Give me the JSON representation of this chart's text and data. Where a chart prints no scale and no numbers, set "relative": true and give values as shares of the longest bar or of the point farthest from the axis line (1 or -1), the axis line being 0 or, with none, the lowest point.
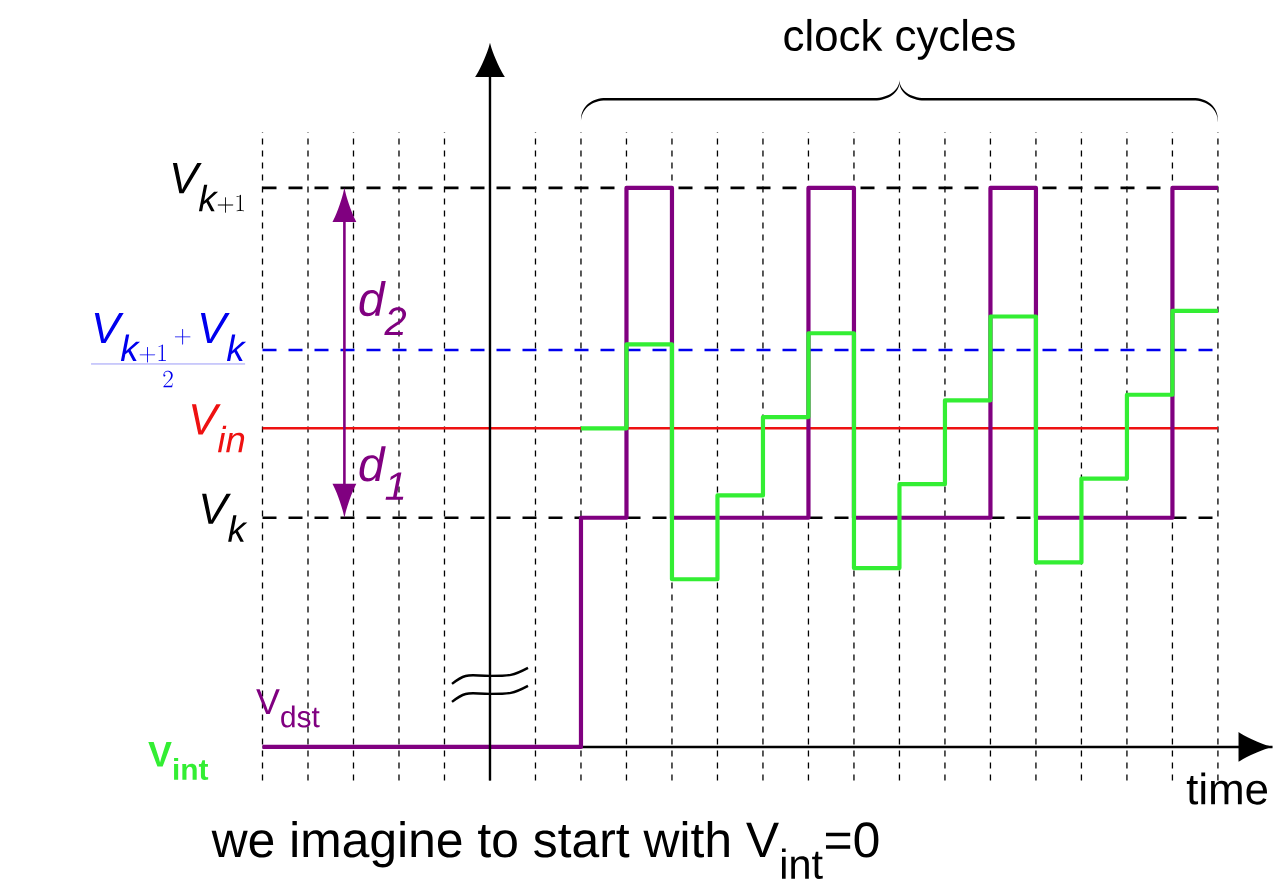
{
  "chart_data": {
    "type": "step",
    "relative": true,
    "xlabel": "time",
    "grid": "x",
    "marker": "none",
    "line_style": "solid",
    "categories": [
      null,
      null,
      null,
      null,
      null,
      null,
      null,
      null,
      null,
      null,
      null,
      null,
      null,
      null,
      null,
      null,
      null,
      null,
      null,
      null,
      null,
      null
    ],
    "series": [
      {
        "name": "V$_{dst}$",
        "color": "#800080",
        "values": [
          0,
          0,
          0,
          0,
          0,
          0,
          0,
          0.41,
          1,
          0.41,
          0.41,
          0.41,
          1,
          0.41,
          0.41,
          0.41,
          1,
          0.41,
          0.41,
          0.41,
          1,
          1
        ]
      },
      {
        "name": "V$_{int}$",
        "color": "#33ee33",
        "values": [
          null,
          null,
          null,
          null,
          null,
          null,
          null,
          0.57,
          0.72,
          0.3,
          0.45,
          0.59,
          0.74,
          0.32,
          0.47,
          0.62,
          0.77,
          0.33,
          0.48,
          0.63,
          0.78,
          0.78
        ]
      }
    ],
    "ref_lines": [
      {
        "axis": "y",
        "value": 1,
        "label": "V_{k+1}",
        "color": "#000000",
        "line_style": "dashed"
      },
      {
        "axis": "y",
        "value": 0.71,
        "label": "\\frac{V_{k+1}+V_k}{2}",
        "color": "#0000ee",
        "line_style": "dashed"
      },
      {
        "axis": "y",
        "value": 0.57,
        "label": "V_{in}",
        "color": "#ee1111",
        "line_style": "solid"
      },
      {
        "axis": "y",
        "value": 0.41,
        "label": "V_k",
        "color": "#000000",
        "line_style": "dashed"
      }
    ],
    "annotations": [
      "we imagine to start with V$_{int}$=0",
      "clock cycles",
      "d$_{2}$",
      "d$_{1}$"
    ]
  }
}
